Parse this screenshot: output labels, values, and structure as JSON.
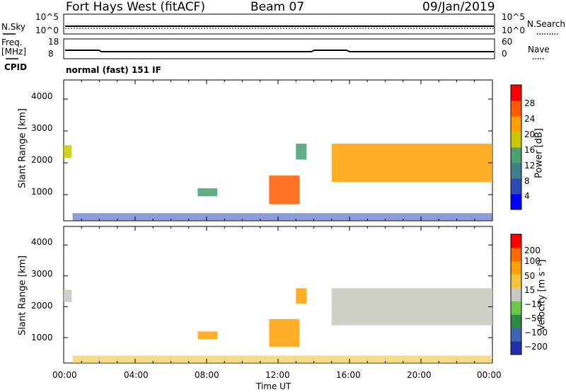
{
  "header": {
    "station": "Fort Hays West (fitACF)",
    "beam": "Beam 07",
    "date": "09/Jan/2019"
  },
  "strips": {
    "nsky_label": "N.Sky",
    "nsky_ticks": [
      "10^5",
      "10^0"
    ],
    "nsearch_label": "N.Search",
    "nsearch_ticks": [
      "10^5",
      "10^0"
    ],
    "freq_label": "Freq.",
    "freq_unit": "[MHz]",
    "freq_ticks": [
      "18",
      "8"
    ],
    "nave_label": "Nave",
    "nave_ticks": [
      "60",
      "0"
    ],
    "cpid_label": "CPID",
    "mode_text": "normal (fast) 151 IF"
  },
  "chart_data": [
    {
      "type": "heatmap",
      "name": "power-panel",
      "ylabel": "Slant Range [km]",
      "yticks": [
        "4000",
        "3000",
        "2000",
        "1000"
      ],
      "ylim": [
        180,
        4600
      ],
      "xlim": [
        0,
        24
      ],
      "colorbar": {
        "label": "Power [dB]",
        "ticks": [
          "28",
          "24",
          "20",
          "16",
          "12",
          "8",
          "4"
        ],
        "range": [
          0,
          32
        ],
        "colors": [
          "#0000ff",
          "#2f4ab8",
          "#3f7f8a",
          "#4aa070",
          "#c8c800",
          "#ffa000",
          "#ff5a00",
          "#ff0000"
        ]
      },
      "features": [
        {
          "t0": 0.0,
          "t1": 0.45,
          "r0": 2150,
          "r1": 2550,
          "level": 16
        },
        {
          "t0": 7.5,
          "t1": 8.6,
          "r0": 950,
          "r1": 1200,
          "level": 14
        },
        {
          "t0": 11.5,
          "t1": 13.2,
          "r0": 700,
          "r1": 1600,
          "level": 26
        },
        {
          "t0": 13.0,
          "t1": 13.6,
          "r0": 2100,
          "r1": 2600,
          "level": 14
        },
        {
          "t0": 15.0,
          "t1": 24.0,
          "r0": 1400,
          "r1": 2600,
          "level": 22
        }
      ]
    },
    {
      "type": "heatmap",
      "name": "velocity-panel",
      "ylabel": "Slant Range [km]",
      "xlabel": "Time UT",
      "xticks": [
        "00:00",
        "04:00",
        "08:00",
        "12:00",
        "16:00",
        "20:00",
        "00:00"
      ],
      "yticks": [
        "4000",
        "3000",
        "2000",
        "1000"
      ],
      "ylim": [
        180,
        4600
      ],
      "xlim": [
        0,
        24
      ],
      "colorbar": {
        "label": "Velocity [m s⁻¹]",
        "ticks": [
          "200",
          "100",
          "50",
          "15",
          "−15",
          "−50",
          "−100",
          "−200"
        ],
        "colors": [
          "#1f2fae",
          "#3c64b4",
          "#2f8a4a",
          "#6cc84a",
          "#c8c8c0",
          "#f5c23c",
          "#ffa000",
          "#ff6a00",
          "#ff0000"
        ]
      }
    }
  ]
}
